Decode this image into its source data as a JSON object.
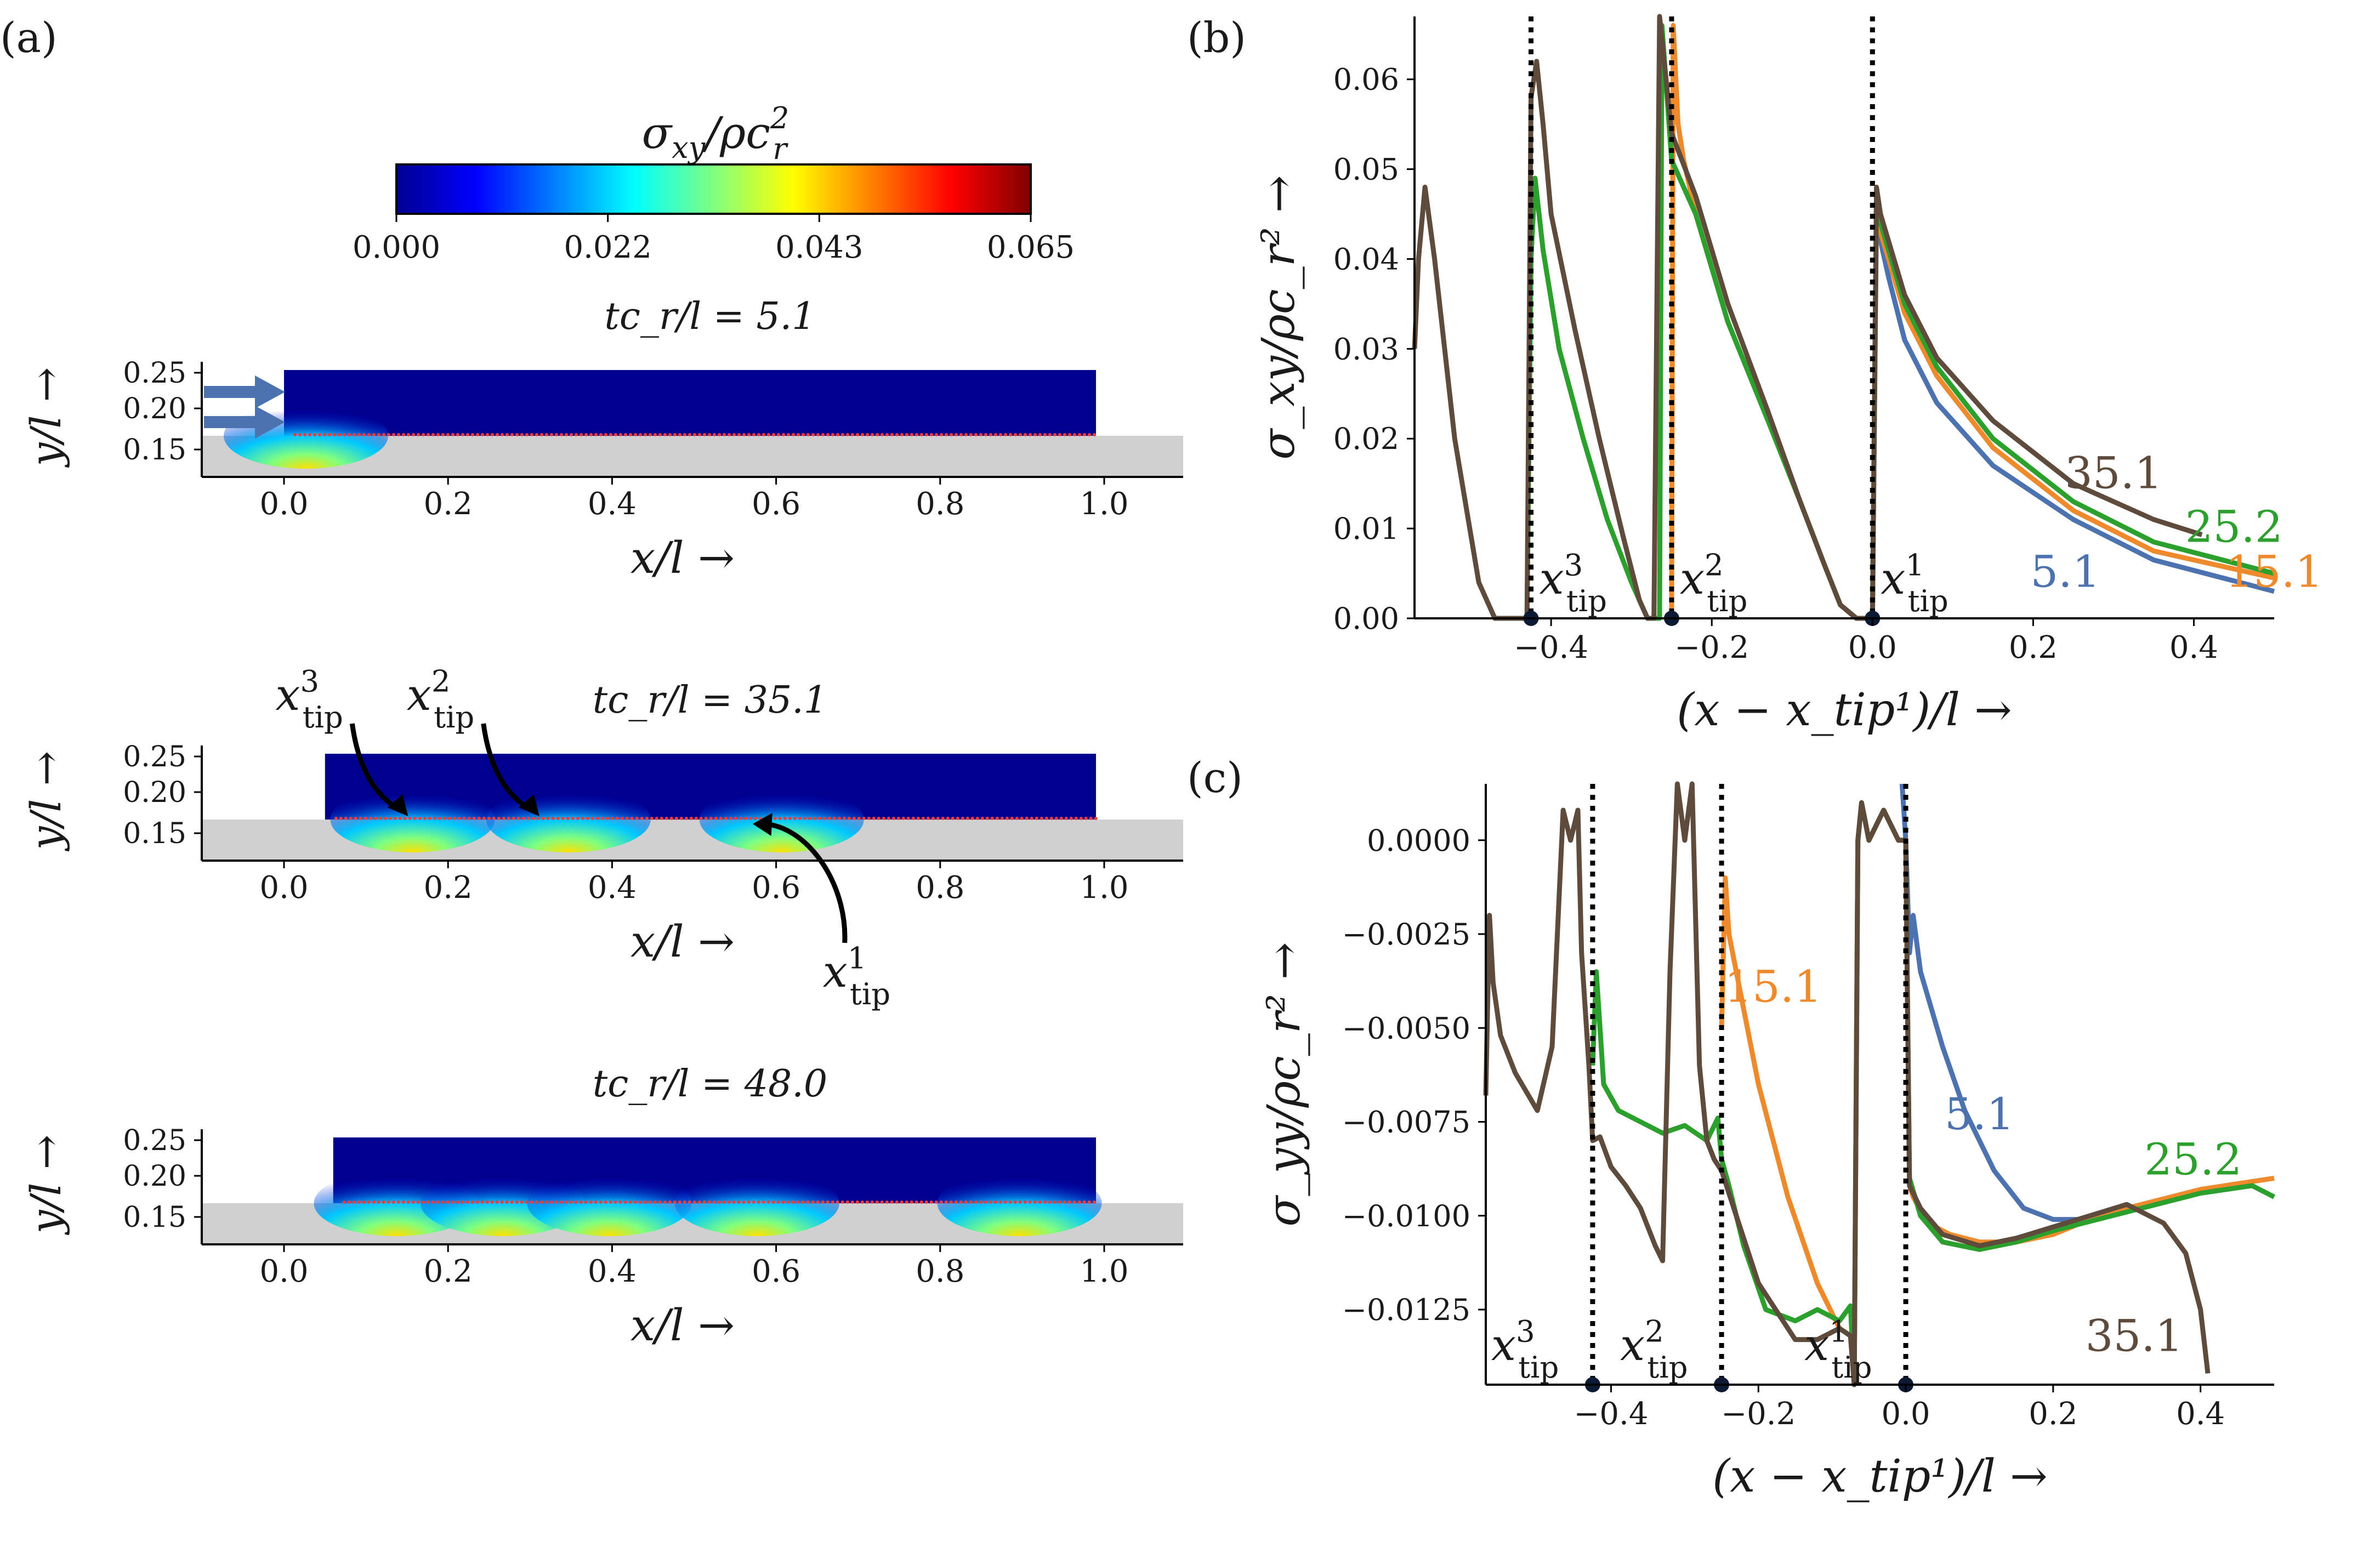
{
  "panel_labels": {
    "a": "(a)",
    "b": "(b)",
    "c": "(c)"
  },
  "colors": {
    "s5_1": "#4c72b0",
    "s15_1": "#ee8a2c",
    "s25_2": "#2ca02c",
    "s35_1": "#5e4b3c",
    "substrate": "#d0d0d0",
    "field": "#00008f"
  },
  "colorbar": {
    "label": "σ_xy/ρc_r²",
    "ticks": [
      "0.000",
      "0.022",
      "0.043",
      "0.065"
    ]
  },
  "snapshots": [
    {
      "title": "tc_r/l = 5.1",
      "x_start": 0.0,
      "warm_x": [
        0.0
      ],
      "tips": []
    },
    {
      "title": "tc_r/l = 35.1",
      "x_start": 0.05,
      "warm_x": [
        0.13,
        0.32,
        0.58
      ],
      "tips": [
        {
          "label": "x_tip^3",
          "sup": "3",
          "x": 0.15
        },
        {
          "label": "x_tip^2",
          "sup": "2",
          "x": 0.31
        },
        {
          "label": "x_tip^1",
          "sup": "1",
          "x": 0.57
        }
      ]
    },
    {
      "title": "tc_r/l = 48.0",
      "x_start": 0.06,
      "warm_x": [
        0.11,
        0.24,
        0.37,
        0.55,
        0.87
      ],
      "tips": []
    }
  ],
  "snapshot_axes": {
    "xticks": [
      "0.0",
      "0.2",
      "0.4",
      "0.6",
      "0.8",
      "1.0"
    ],
    "yticks": [
      "0.25",
      "0.20",
      "0.15"
    ],
    "xlabel": "x/l →",
    "ylabel": "y/l →"
  },
  "chart_data": [
    {
      "type": "line",
      "panel": "b",
      "xlabel": "(x − x_tip¹)/l →",
      "ylabel": "σ_xy/ρc_r² →",
      "xlim": [
        -0.57,
        0.5
      ],
      "ylim": [
        0.0,
        0.067
      ],
      "xticks": [
        -0.4,
        -0.2,
        0.0,
        0.2,
        0.4
      ],
      "xtick_labels": [
        "−0.4",
        "−0.2",
        "0.0",
        "0.2",
        "0.4"
      ],
      "yticks": [
        0.0,
        0.01,
        0.02,
        0.03,
        0.04,
        0.05,
        0.06
      ],
      "ytick_labels": [
        "0.00",
        "0.01",
        "0.02",
        "0.03",
        "0.04",
        "0.05",
        "0.06"
      ],
      "tips": [
        {
          "x": -0.425,
          "sup": "3"
        },
        {
          "x": -0.25,
          "sup": "2"
        },
        {
          "x": 0.0,
          "sup": "1"
        }
      ],
      "series": [
        {
          "name": "5.1",
          "color": "#4c72b0",
          "x": [
            0.0,
            0.005,
            0.01,
            0.02,
            0.04,
            0.08,
            0.15,
            0.25,
            0.35,
            0.5
          ],
          "y": [
            0.0,
            0.045,
            0.042,
            0.038,
            0.031,
            0.024,
            0.017,
            0.011,
            0.0065,
            0.003
          ]
        },
        {
          "name": "15.1",
          "color": "#ee8a2c",
          "x": [
            -0.25,
            -0.248,
            -0.242,
            -0.235,
            -0.22,
            -0.18,
            -0.13,
            -0.09,
            -0.06,
            -0.04,
            -0.02,
            0.0,
            0.005,
            0.01,
            0.02,
            0.04,
            0.08,
            0.15,
            0.25,
            0.35,
            0.5
          ],
          "y": [
            0.0,
            0.066,
            0.055,
            0.051,
            0.045,
            0.033,
            0.022,
            0.013,
            0.006,
            0.0015,
            0.0,
            0.0,
            0.047,
            0.043,
            0.04,
            0.034,
            0.027,
            0.019,
            0.012,
            0.0075,
            0.0045
          ]
        },
        {
          "name": "25.2",
          "color": "#2ca02c",
          "x": [
            -0.43,
            -0.425,
            -0.42,
            -0.41,
            -0.39,
            -0.36,
            -0.33,
            -0.3,
            -0.28,
            -0.27,
            -0.265,
            -0.262,
            -0.25,
            -0.22,
            -0.18,
            -0.13,
            -0.09,
            -0.06,
            -0.04,
            -0.02,
            0.0,
            0.005,
            0.01,
            0.02,
            0.04,
            0.08,
            0.15,
            0.25,
            0.35,
            0.5
          ],
          "y": [
            0.0,
            0.04,
            0.049,
            0.041,
            0.03,
            0.02,
            0.011,
            0.004,
            0.0,
            0.0,
            0.0,
            0.066,
            0.051,
            0.045,
            0.033,
            0.022,
            0.013,
            0.006,
            0.0015,
            0.0,
            0.0,
            0.047,
            0.044,
            0.041,
            0.035,
            0.028,
            0.02,
            0.013,
            0.0085,
            0.005
          ]
        },
        {
          "name": "35.1",
          "color": "#5e4b3c",
          "x": [
            -0.57,
            -0.565,
            -0.557,
            -0.545,
            -0.52,
            -0.49,
            -0.47,
            -0.44,
            -0.43,
            -0.425,
            -0.418,
            -0.41,
            -0.4,
            -0.37,
            -0.34,
            -0.31,
            -0.29,
            -0.28,
            -0.272,
            -0.265,
            -0.25,
            -0.22,
            -0.18,
            -0.13,
            -0.09,
            -0.06,
            -0.04,
            -0.02,
            0.0,
            0.005,
            0.01,
            0.02,
            0.04,
            0.08,
            0.15,
            0.25,
            0.35,
            0.41
          ],
          "y": [
            0.03,
            0.04,
            0.048,
            0.04,
            0.02,
            0.004,
            0.0,
            0.0,
            0.0,
            0.058,
            0.062,
            0.055,
            0.045,
            0.032,
            0.02,
            0.009,
            0.002,
            0.0,
            0.0,
            0.067,
            0.054,
            0.047,
            0.035,
            0.023,
            0.013,
            0.006,
            0.0015,
            0.0,
            0.0,
            0.048,
            0.045,
            0.042,
            0.036,
            0.029,
            0.022,
            0.015,
            0.011,
            0.0093
          ]
        }
      ],
      "curve_labels": [
        {
          "text": "35.1",
          "color": "#5e4b3c",
          "x": 0.3,
          "y": 0.0145
        },
        {
          "text": "25.2",
          "color": "#2ca02c",
          "x": 0.45,
          "y": 0.0085
        },
        {
          "text": "5.1",
          "color": "#4c72b0",
          "x": 0.24,
          "y": 0.0035
        },
        {
          "text": "15.1",
          "color": "#ee8a2c",
          "x": 0.5,
          "y": 0.0035
        }
      ]
    },
    {
      "type": "line",
      "panel": "c",
      "xlabel": "(x − x_tip¹)/l →",
      "ylabel": "σ_yy/ρc_r² →",
      "xlim": [
        -0.57,
        0.5
      ],
      "ylim": [
        -0.0145,
        0.0015
      ],
      "xticks": [
        -0.4,
        -0.2,
        0.0,
        0.2,
        0.4
      ],
      "xtick_labels": [
        "−0.4",
        "−0.2",
        "0.0",
        "0.2",
        "0.4"
      ],
      "yticks": [
        0.0,
        -0.0025,
        -0.005,
        -0.0075,
        -0.01,
        -0.0125
      ],
      "ytick_labels": [
        "0.0000",
        "−0.0025",
        "−0.0050",
        "−0.0075",
        "−0.0100",
        "−0.0125"
      ],
      "tips": [
        {
          "x": -0.425,
          "sup": "3"
        },
        {
          "x": -0.25,
          "sup": "2"
        },
        {
          "x": 0.0,
          "sup": "1"
        }
      ],
      "series": [
        {
          "name": "5.1",
          "color": "#4c72b0",
          "x": [
            -0.005,
            0.0,
            0.005,
            0.01,
            0.02,
            0.05,
            0.08,
            0.12,
            0.16,
            0.2,
            0.25,
            0.3
          ],
          "y": [
            0.0015,
            0.0,
            -0.003,
            -0.002,
            -0.0035,
            -0.0055,
            -0.0072,
            -0.0088,
            -0.0098,
            -0.0101,
            -0.0101,
            -0.0099
          ]
        },
        {
          "name": "15.1",
          "color": "#ee8a2c",
          "x": [
            -0.25,
            -0.245,
            -0.24,
            -0.23,
            -0.2,
            -0.16,
            -0.12,
            -0.09,
            -0.075,
            -0.07,
            -0.065,
            -0.06,
            -0.05,
            -0.03,
            -0.01,
            0.0,
            0.005,
            0.01,
            0.03,
            0.06,
            0.1,
            0.15,
            0.2,
            0.25,
            0.3,
            0.4,
            0.5
          ],
          "y": [
            -0.005,
            -0.001,
            -0.0025,
            -0.0035,
            -0.0065,
            -0.0095,
            -0.0118,
            -0.013,
            -0.0132,
            -0.0145,
            0.0,
            0.001,
            0.0,
            0.0008,
            0.0,
            0.0,
            -0.0092,
            -0.0095,
            -0.0102,
            -0.0105,
            -0.0107,
            -0.0107,
            -0.0105,
            -0.0101,
            -0.0098,
            -0.0093,
            -0.009
          ]
        },
        {
          "name": "25.2",
          "color": "#2ca02c",
          "x": [
            -0.425,
            -0.42,
            -0.41,
            -0.39,
            -0.36,
            -0.33,
            -0.3,
            -0.27,
            -0.255,
            -0.25,
            -0.24,
            -0.22,
            -0.19,
            -0.15,
            -0.12,
            -0.09,
            -0.075,
            -0.07,
            -0.065,
            -0.06,
            -0.05,
            -0.03,
            -0.01,
            0.0,
            0.005,
            0.02,
            0.05,
            0.1,
            0.15,
            0.2,
            0.3,
            0.4,
            0.47,
            0.5
          ],
          "y": [
            -0.006,
            -0.0035,
            -0.0065,
            -0.0072,
            -0.0075,
            -0.0078,
            -0.0076,
            -0.008,
            -0.0074,
            -0.0085,
            -0.0092,
            -0.0108,
            -0.0125,
            -0.0128,
            -0.0125,
            -0.0128,
            -0.0124,
            -0.0145,
            0.0,
            0.001,
            0.0,
            0.0008,
            0.0,
            0.0,
            -0.009,
            -0.01,
            -0.0107,
            -0.0109,
            -0.0107,
            -0.0104,
            -0.0099,
            -0.0094,
            -0.0092,
            -0.0095
          ]
        },
        {
          "name": "35.1",
          "color": "#5e4b3c",
          "x": [
            -0.57,
            -0.565,
            -0.56,
            -0.55,
            -0.53,
            -0.5,
            -0.48,
            -0.465,
            -0.455,
            -0.445,
            -0.44,
            -0.43,
            -0.425,
            -0.415,
            -0.4,
            -0.38,
            -0.36,
            -0.34,
            -0.33,
            -0.32,
            -0.31,
            -0.3,
            -0.29,
            -0.28,
            -0.27,
            -0.26,
            -0.25,
            -0.23,
            -0.2,
            -0.15,
            -0.12,
            -0.09,
            -0.075,
            -0.07,
            -0.065,
            -0.06,
            -0.05,
            -0.03,
            -0.01,
            0.0,
            0.005,
            0.02,
            0.05,
            0.1,
            0.15,
            0.2,
            0.25,
            0.3,
            0.35,
            0.38,
            0.4,
            0.41
          ],
          "y": [
            -0.0068,
            -0.002,
            -0.0038,
            -0.0052,
            -0.0062,
            -0.0072,
            -0.0055,
            0.0008,
            0.0,
            0.0008,
            -0.003,
            -0.006,
            -0.008,
            -0.0079,
            -0.0087,
            -0.0092,
            -0.0098,
            -0.0108,
            -0.0112,
            -0.0035,
            0.0015,
            0.0,
            0.0015,
            -0.006,
            -0.008,
            -0.0085,
            -0.0088,
            -0.01,
            -0.0118,
            -0.0133,
            -0.0133,
            -0.013,
            -0.0132,
            -0.0145,
            0.0,
            0.001,
            0.0,
            0.0008,
            0.0,
            0.0,
            -0.0092,
            -0.0098,
            -0.0105,
            -0.0108,
            -0.0106,
            -0.0103,
            -0.01,
            -0.0097,
            -0.0102,
            -0.011,
            -0.0125,
            -0.0142
          ]
        }
      ],
      "curve_labels": [
        {
          "text": "15.1",
          "color": "#ee8a2c",
          "x": -0.18,
          "y": -0.0043
        },
        {
          "text": "5.1",
          "color": "#4c72b0",
          "x": 0.1,
          "y": -0.0077
        },
        {
          "text": "25.2",
          "color": "#2ca02c",
          "x": 0.39,
          "y": -0.0089
        },
        {
          "text": "35.1",
          "color": "#5e4b3c",
          "x": 0.31,
          "y": -0.0136
        }
      ]
    }
  ]
}
